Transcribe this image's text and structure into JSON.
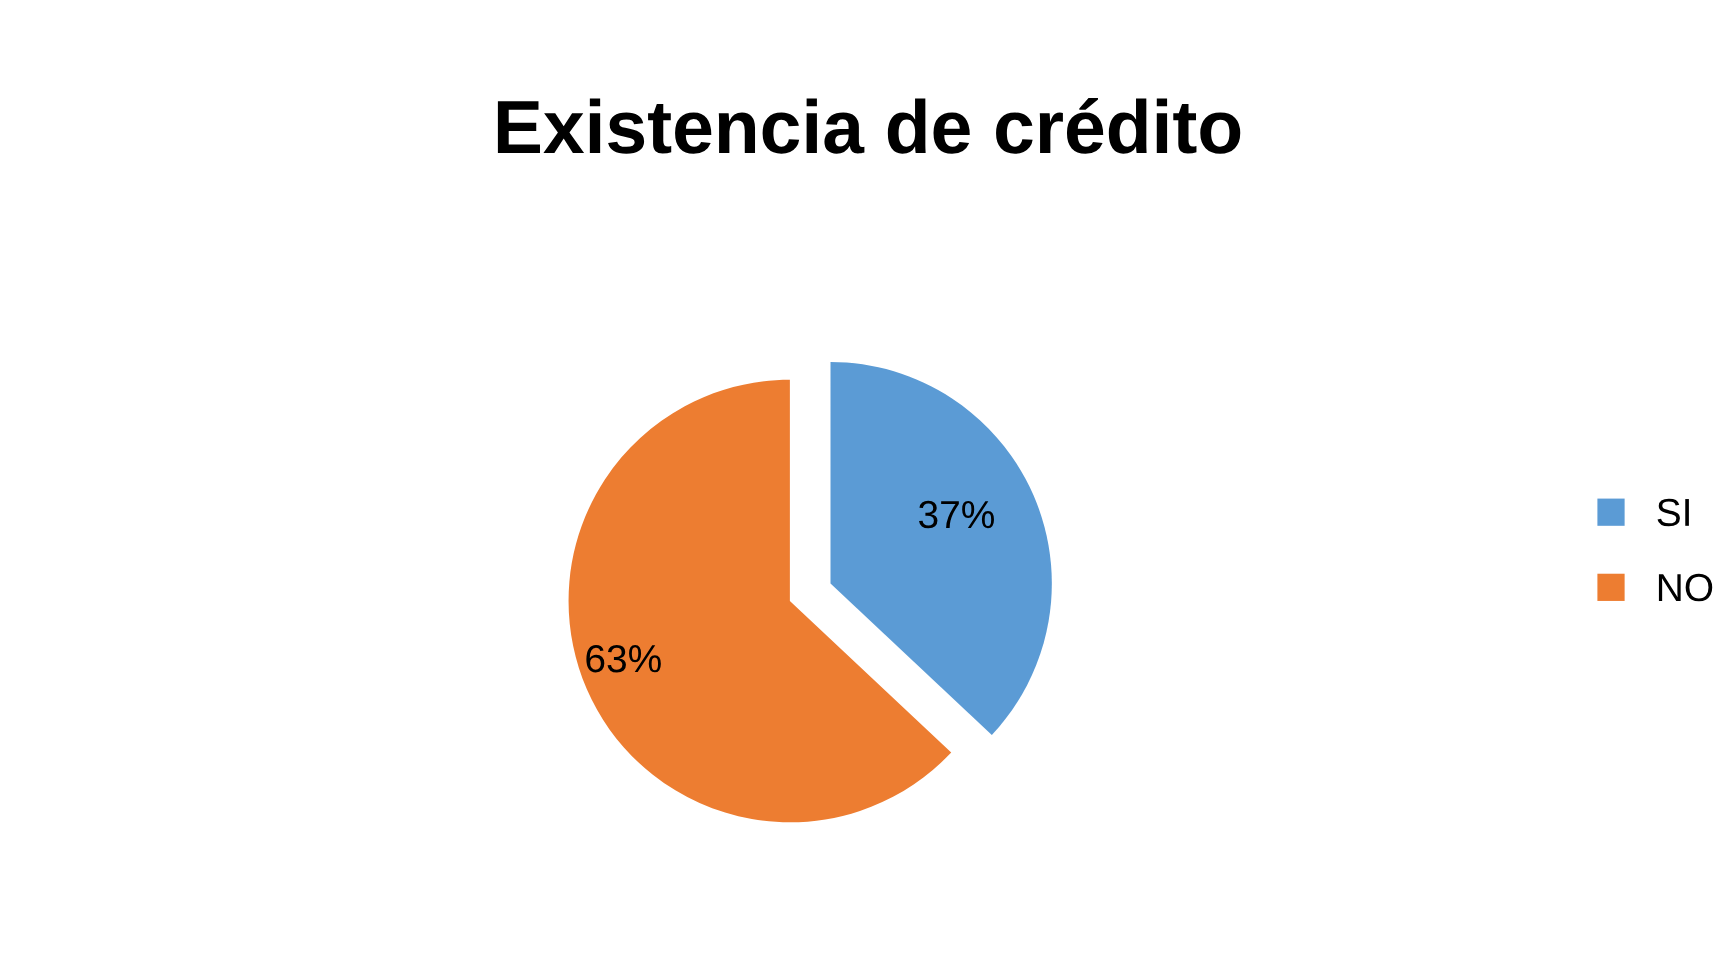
{
  "chart_data": {
    "type": "pie",
    "title": "Existencia de crédito",
    "categories": [
      "SI",
      "NO"
    ],
    "values": [
      37,
      63
    ],
    "colors": [
      "#5b9bd5",
      "#ed7d31"
    ],
    "value_labels": [
      "37%",
      "63%"
    ],
    "legend": "right"
  }
}
